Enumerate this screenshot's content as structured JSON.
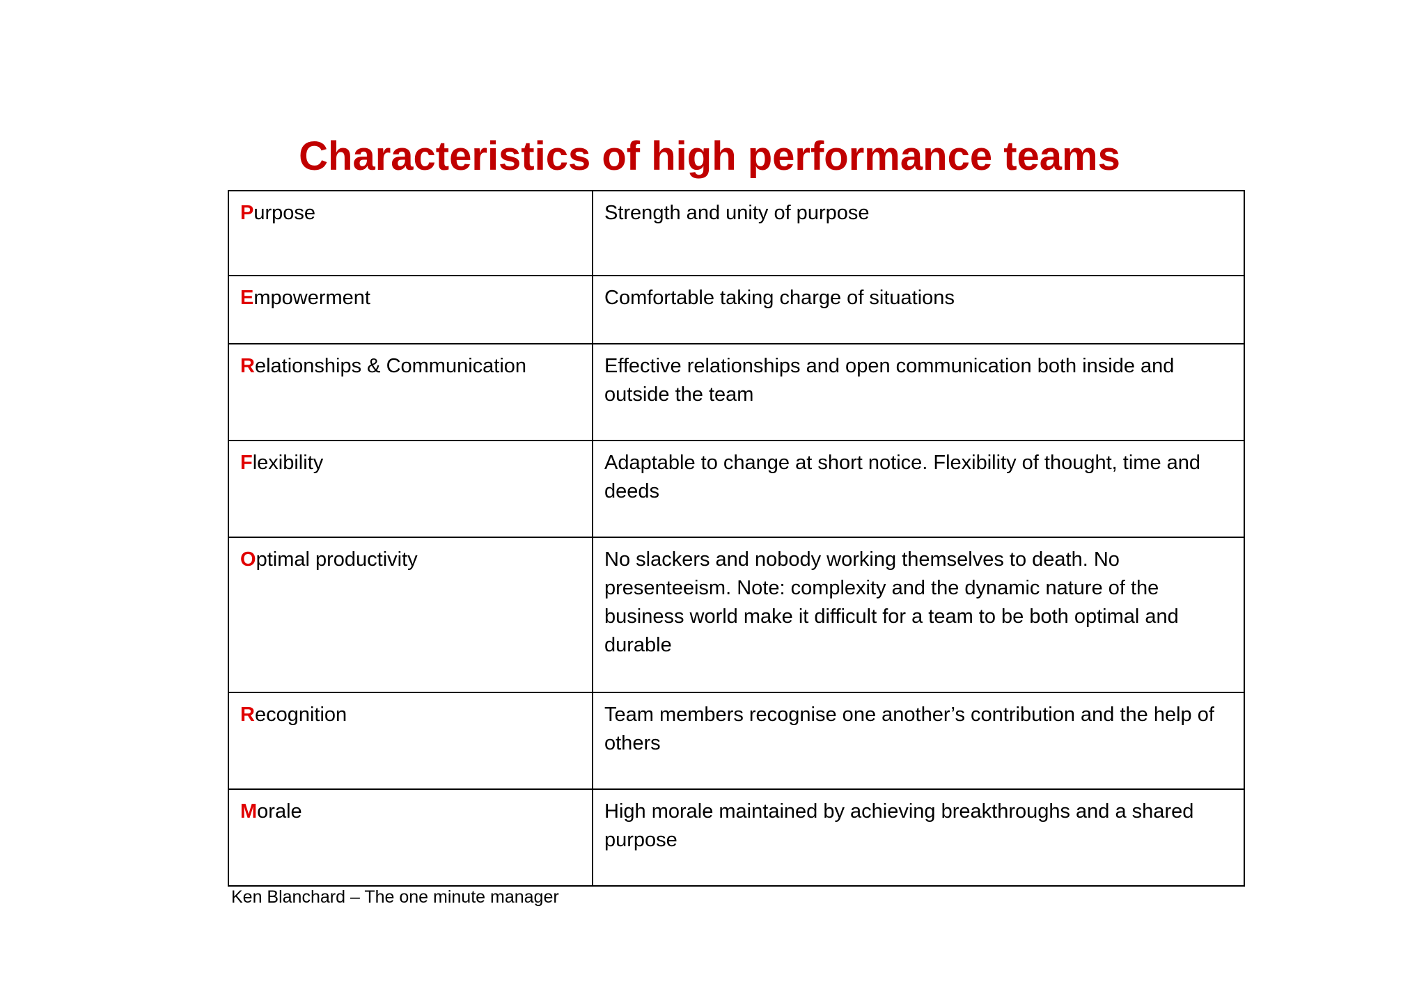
{
  "slide": {
    "title": "Characteristics of high performance teams",
    "source": "Ken Blanchard – The one minute manager",
    "accent_color": "#c00000",
    "initial_color": "#e00000",
    "rows": [
      {
        "initial": "P",
        "rest": "urpose",
        "description": "Strength and unity of purpose"
      },
      {
        "initial": "E",
        "rest": "mpowerment",
        "description": "Comfortable taking charge of situations"
      },
      {
        "initial": "R",
        "rest": "elationships & Communication",
        "description": "Effective relationships and open communication both inside and outside the team"
      },
      {
        "initial": "F",
        "rest": "lexibility",
        "description": "Adaptable to change at short notice.  Flexibility of thought, time and deeds"
      },
      {
        "initial": "O",
        "rest": "ptimal productivity",
        "description": "No slackers and nobody working themselves to death.  No presenteeism.  Note: complexity and the dynamic nature of the business world make it difficult for a team to be both optimal and durable"
      },
      {
        "initial": "R",
        "rest": "ecognition",
        "description": "Team members recognise one another’s contribution and the help of others"
      },
      {
        "initial": "M",
        "rest": "orale",
        "description": "High morale maintained by achieving breakthroughs and a shared purpose"
      }
    ]
  }
}
